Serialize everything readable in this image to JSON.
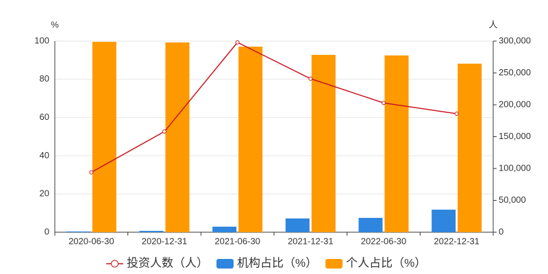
{
  "chart_data": {
    "type": "bar",
    "categories": [
      "2020-06-30",
      "2020-12-31",
      "2021-06-30",
      "2021-12-31",
      "2022-06-30",
      "2022-12-31"
    ],
    "y_label": "%",
    "y2_label": "人",
    "ylim": [
      0,
      100
    ],
    "yticks": [
      0,
      20,
      40,
      60,
      80,
      100
    ],
    "y2lim": [
      0,
      300000
    ],
    "y2ticks": [
      0,
      {
        "value": 50000,
        "label": "50,000"
      },
      {
        "value": 100000,
        "label": "100,000"
      },
      {
        "value": 150000,
        "label": "150,000"
      },
      {
        "value": 200000,
        "label": "200,000"
      },
      {
        "value": 250000,
        "label": "250,000"
      },
      {
        "value": 300000,
        "label": "300,000"
      }
    ],
    "series": [
      {
        "name": "投资人数（人）",
        "type": "line",
        "axis": "y2",
        "color": "#c9151e",
        "values": [
          94000,
          158000,
          298000,
          241000,
          203000,
          186000
        ]
      },
      {
        "name": "机构占比（%）",
        "type": "bar",
        "color": "#2e86de",
        "values": [
          0.4,
          0.7,
          2.9,
          7.2,
          7.5,
          11.8
        ]
      },
      {
        "name": "个人占比（%）",
        "type": "bar",
        "color": "#ff9900",
        "values": [
          99.6,
          99.3,
          97.1,
          92.8,
          92.5,
          88.2
        ]
      }
    ]
  }
}
